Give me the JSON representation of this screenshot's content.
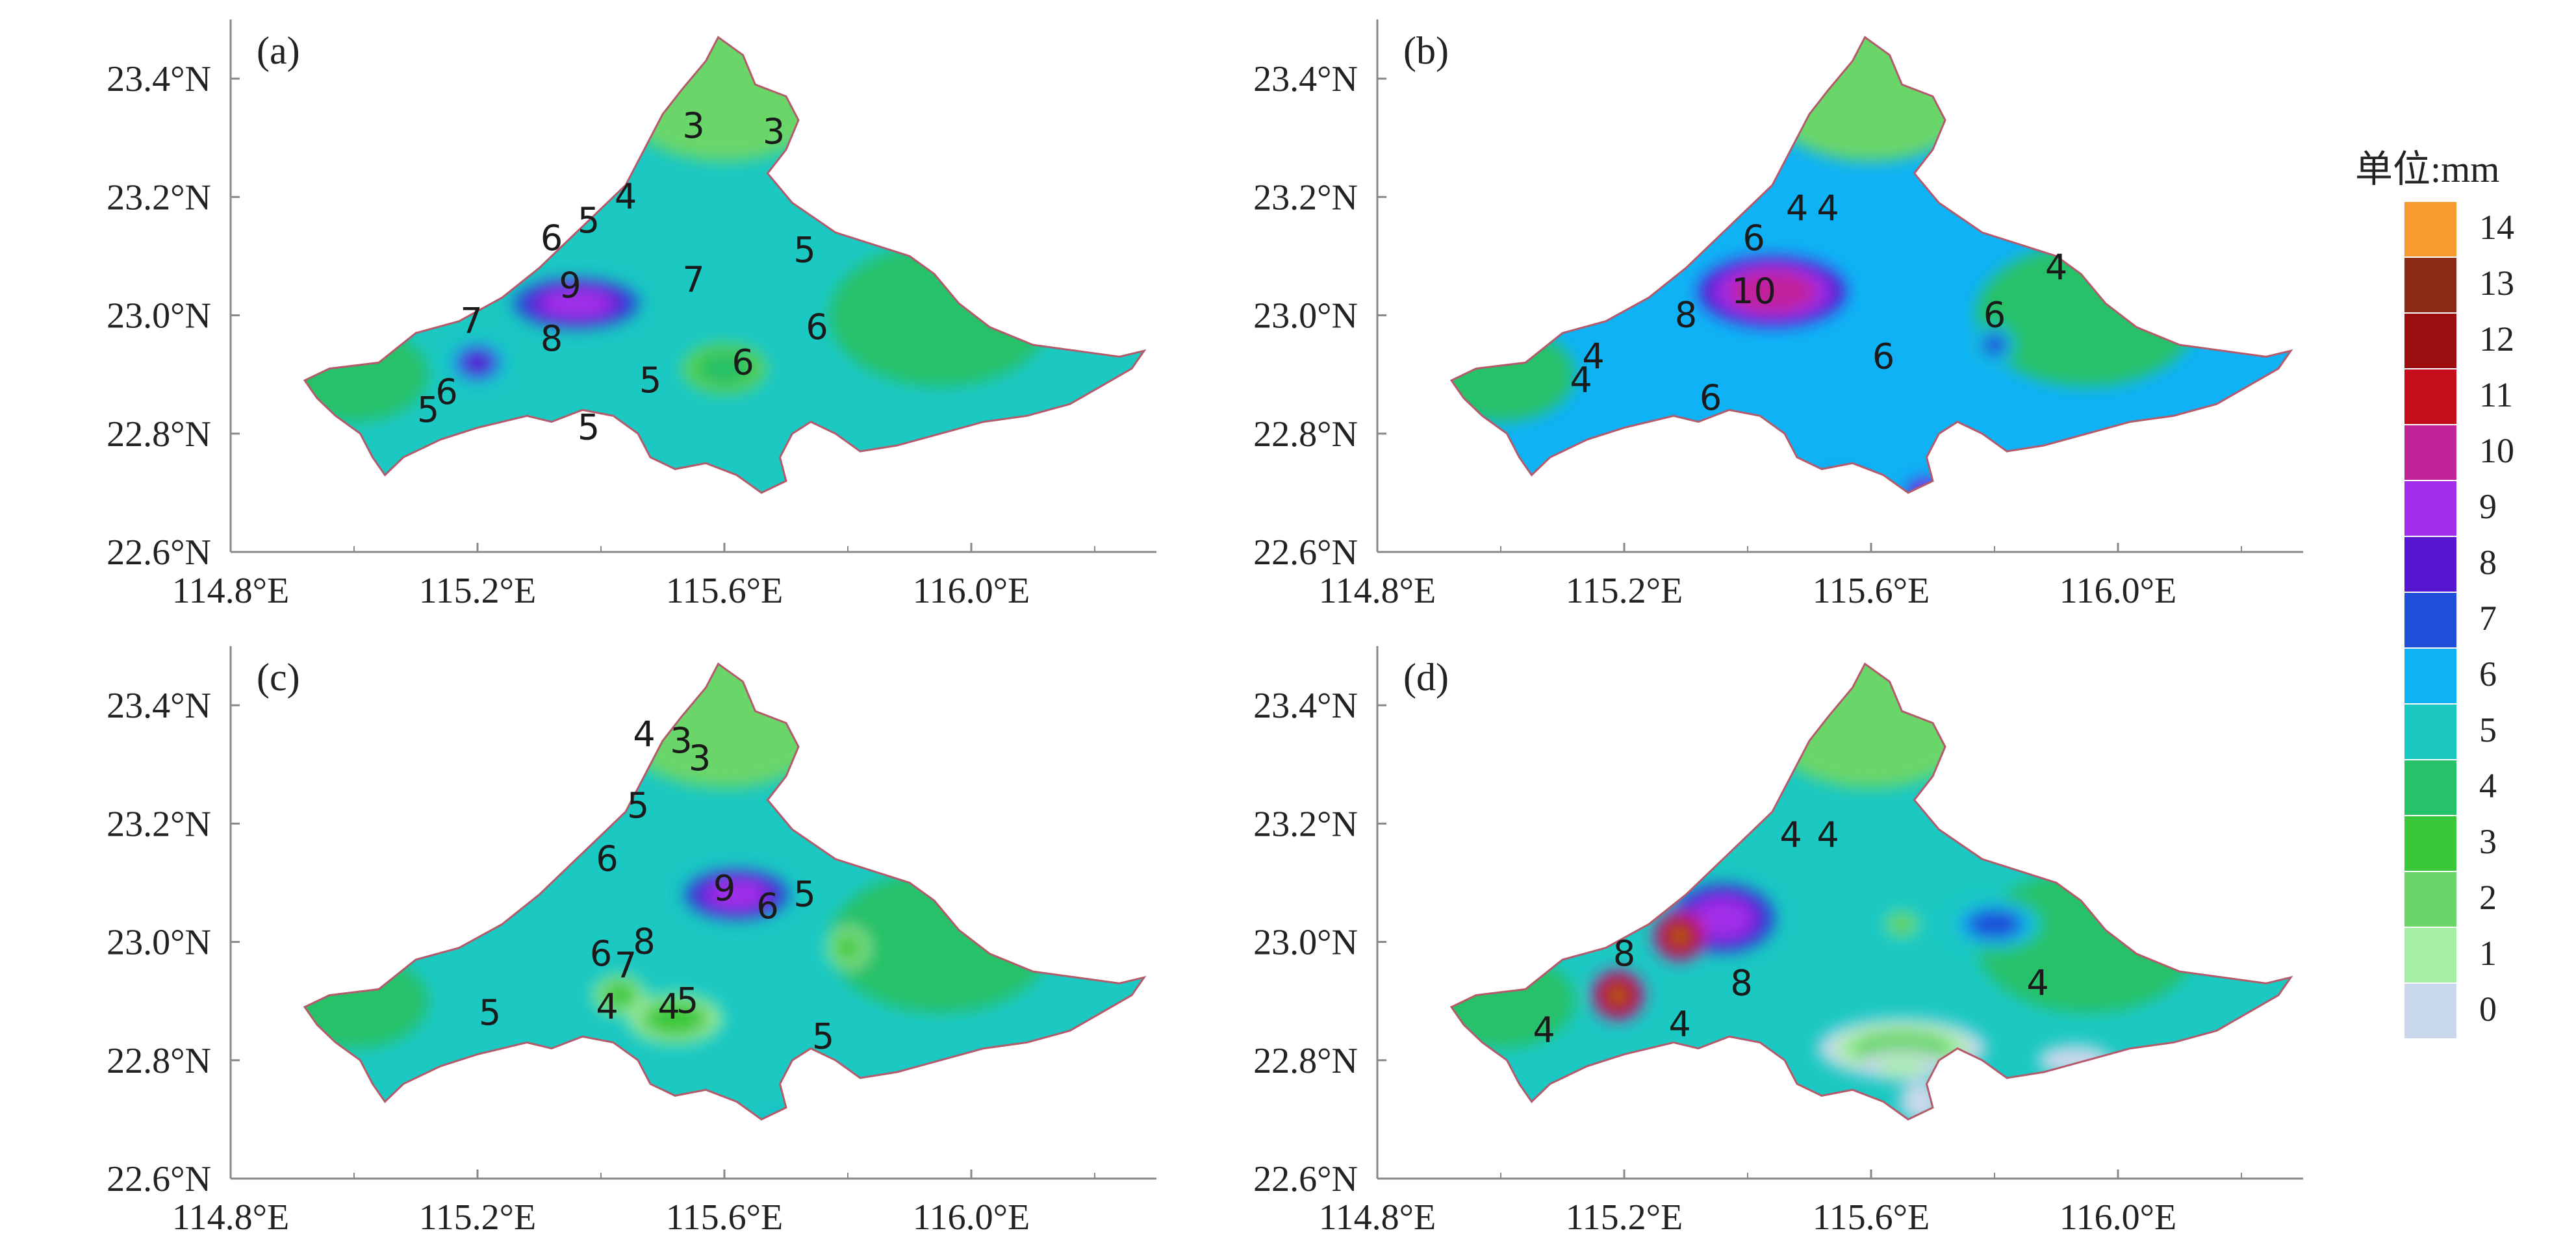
{
  "panels": [
    {
      "label": "(a)",
      "contour_labels": [
        {
          "text": "3",
          "lon": 115.55,
          "lat": 23.32
        },
        {
          "text": "3",
          "lon": 115.68,
          "lat": 23.31
        },
        {
          "text": "4",
          "lon": 115.44,
          "lat": 23.2
        },
        {
          "text": "5",
          "lon": 115.38,
          "lat": 23.16
        },
        {
          "text": "6",
          "lon": 115.32,
          "lat": 23.13
        },
        {
          "text": "5",
          "lon": 115.73,
          "lat": 23.11
        },
        {
          "text": "9",
          "lon": 115.35,
          "lat": 23.05
        },
        {
          "text": "7",
          "lon": 115.55,
          "lat": 23.06
        },
        {
          "text": "7",
          "lon": 115.19,
          "lat": 22.99
        },
        {
          "text": "8",
          "lon": 115.32,
          "lat": 22.96
        },
        {
          "text": "6",
          "lon": 115.75,
          "lat": 22.98
        },
        {
          "text": "6",
          "lon": 115.63,
          "lat": 22.92
        },
        {
          "text": "5",
          "lon": 115.48,
          "lat": 22.89
        },
        {
          "text": "6",
          "lon": 115.15,
          "lat": 22.87
        },
        {
          "text": "5",
          "lon": 115.12,
          "lat": 22.84
        },
        {
          "text": "5",
          "lon": 115.38,
          "lat": 22.81
        }
      ],
      "field_features": [
        {
          "value": 9.5,
          "lon": 115.36,
          "lat": 23.02,
          "rx": 0.06,
          "ry": 0.025
        },
        {
          "value": 8.6,
          "lon": 115.2,
          "lat": 22.92,
          "rx": 0.025,
          "ry": 0.02
        },
        {
          "value": 4.5,
          "lon": 115.6,
          "lat": 22.91,
          "rx": 0.04,
          "ry": 0.025
        }
      ]
    },
    {
      "label": "(b)",
      "contour_labels": [
        {
          "text": "4",
          "lon": 115.48,
          "lat": 23.18
        },
        {
          "text": "4",
          "lon": 115.53,
          "lat": 23.18
        },
        {
          "text": "6",
          "lon": 115.41,
          "lat": 23.13
        },
        {
          "text": "4",
          "lon": 115.9,
          "lat": 23.08
        },
        {
          "text": "10",
          "lon": 115.41,
          "lat": 23.04
        },
        {
          "text": "6",
          "lon": 115.8,
          "lat": 23.0
        },
        {
          "text": "8",
          "lon": 115.3,
          "lat": 23.0
        },
        {
          "text": "4",
          "lon": 115.15,
          "lat": 22.93
        },
        {
          "text": "4",
          "lon": 115.13,
          "lat": 22.89
        },
        {
          "text": "6",
          "lon": 115.62,
          "lat": 22.93
        },
        {
          "text": "6",
          "lon": 115.34,
          "lat": 22.86
        }
      ],
      "field_features": [
        {
          "value": 10.5,
          "lon": 115.44,
          "lat": 23.04,
          "rx": 0.07,
          "ry": 0.035
        },
        {
          "value": 7.5,
          "lon": 115.8,
          "lat": 22.95,
          "rx": 0.02,
          "ry": 0.02
        },
        {
          "value": 8.5,
          "lon": 115.55,
          "lat": 22.71,
          "rx": 0.035,
          "ry": 0.015
        },
        {
          "value": 9.5,
          "lon": 115.69,
          "lat": 22.7,
          "rx": 0.02,
          "ry": 0.015
        }
      ]
    },
    {
      "label": "(c)",
      "contour_labels": [
        {
          "text": "4",
          "lon": 115.47,
          "lat": 23.35
        },
        {
          "text": "3",
          "lon": 115.53,
          "lat": 23.34
        },
        {
          "text": "3",
          "lon": 115.56,
          "lat": 23.31
        },
        {
          "text": "5",
          "lon": 115.46,
          "lat": 23.23
        },
        {
          "text": "6",
          "lon": 115.41,
          "lat": 23.14
        },
        {
          "text": "9",
          "lon": 115.6,
          "lat": 23.09
        },
        {
          "text": "6",
          "lon": 115.67,
          "lat": 23.06
        },
        {
          "text": "5",
          "lon": 115.73,
          "lat": 23.08
        },
        {
          "text": "8",
          "lon": 115.47,
          "lat": 23.0
        },
        {
          "text": "7",
          "lon": 115.44,
          "lat": 22.96
        },
        {
          "text": "6",
          "lon": 115.4,
          "lat": 22.98
        },
        {
          "text": "5",
          "lon": 115.22,
          "lat": 22.88
        },
        {
          "text": "4",
          "lon": 115.41,
          "lat": 22.89
        },
        {
          "text": "4",
          "lon": 115.51,
          "lat": 22.89
        },
        {
          "text": "5",
          "lon": 115.54,
          "lat": 22.9
        },
        {
          "text": "5",
          "lon": 115.76,
          "lat": 22.84
        }
      ],
      "field_features": [
        {
          "value": 9.5,
          "lon": 115.62,
          "lat": 23.08,
          "rx": 0.05,
          "ry": 0.025
        },
        {
          "value": 3.5,
          "lon": 115.43,
          "lat": 22.91,
          "rx": 0.025,
          "ry": 0.02
        },
        {
          "value": 3.5,
          "lon": 115.52,
          "lat": 22.87,
          "rx": 0.045,
          "ry": 0.025
        },
        {
          "value": 3.5,
          "lon": 115.8,
          "lat": 22.99,
          "rx": 0.02,
          "ry": 0.02
        },
        {
          "value": 8.5,
          "lon": 115.69,
          "lat": 22.67,
          "rx": 0.015,
          "ry": 0.02
        }
      ]
    },
    {
      "label": "(d)",
      "contour_labels": [
        {
          "text": "4",
          "lon": 115.47,
          "lat": 23.18
        },
        {
          "text": "4",
          "lon": 115.53,
          "lat": 23.18
        },
        {
          "text": "8",
          "lon": 115.2,
          "lat": 22.98
        },
        {
          "text": "8",
          "lon": 115.39,
          "lat": 22.93
        },
        {
          "text": "4",
          "lon": 115.29,
          "lat": 22.86
        },
        {
          "text": "4",
          "lon": 115.07,
          "lat": 22.85
        },
        {
          "text": "4",
          "lon": 115.87,
          "lat": 22.93
        }
      ],
      "field_features": [
        {
          "value": 9.5,
          "lon": 115.36,
          "lat": 23.04,
          "rx": 0.05,
          "ry": 0.035
        },
        {
          "value": 12.5,
          "lon": 115.29,
          "lat": 23.01,
          "rx": 0.025,
          "ry": 0.025
        },
        {
          "value": 14.5,
          "lon": 115.29,
          "lat": 23.01,
          "rx": 0.008,
          "ry": 0.008
        },
        {
          "value": 12.5,
          "lon": 115.19,
          "lat": 22.91,
          "rx": 0.025,
          "ry": 0.025
        },
        {
          "value": 14.5,
          "lon": 115.19,
          "lat": 22.91,
          "rx": 0.008,
          "ry": 0.008
        },
        {
          "value": 7.5,
          "lon": 115.8,
          "lat": 23.03,
          "rx": 0.045,
          "ry": 0.025
        },
        {
          "value": 2.5,
          "lon": 115.65,
          "lat": 22.82,
          "rx": 0.08,
          "ry": 0.03
        },
        {
          "value": 1.5,
          "lon": 115.65,
          "lat": 22.79,
          "rx": 0.04,
          "ry": 0.015
        },
        {
          "value": 0.5,
          "lon": 115.68,
          "lat": 22.73,
          "rx": 0.02,
          "ry": 0.02
        },
        {
          "value": 0.5,
          "lon": 115.93,
          "lat": 22.8,
          "rx": 0.035,
          "ry": 0.015
        },
        {
          "value": 3.5,
          "lon": 115.65,
          "lat": 23.03,
          "rx": 0.015,
          "ry": 0.012
        }
      ]
    }
  ],
  "lat_ticks": [
    "22.6°N",
    "22.8°N",
    "23.0°N",
    "23.2°N",
    "23.4°N"
  ],
  "lat_values": [
    22.6,
    22.8,
    23.0,
    23.2,
    23.4
  ],
  "lon_ticks": [
    "114.8°E",
    "115.2°E",
    "115.6°E",
    "116.0°E"
  ],
  "lon_values": [
    114.8,
    115.2,
    115.6,
    116.0
  ],
  "extent": {
    "lon_min": 114.8,
    "lon_max": 116.3,
    "lat_min": 22.6,
    "lat_max": 23.5
  },
  "colorbar": {
    "title": "单位:mm",
    "levels": [
      {
        "label": "14",
        "color": "#f79a30"
      },
      {
        "label": "13",
        "color": "#8a2a14"
      },
      {
        "label": "12",
        "color": "#9b0e10"
      },
      {
        "label": "11",
        "color": "#c50e1c"
      },
      {
        "label": "10",
        "color": "#c1239b"
      },
      {
        "label": "9",
        "color": "#a12ee8"
      },
      {
        "label": "8",
        "color": "#5616d0"
      },
      {
        "label": "7",
        "color": "#1f4ed8"
      },
      {
        "label": "6",
        "color": "#0fb2f4"
      },
      {
        "label": "5",
        "color": "#1bc8c2"
      },
      {
        "label": "4",
        "color": "#26c169"
      },
      {
        "label": "3",
        "color": "#3ac83a"
      },
      {
        "label": "2",
        "color": "#6ad66a"
      },
      {
        "label": "1",
        "color": "#a5eea5"
      },
      {
        "label": "0",
        "color": "#c9d8ea"
      }
    ]
  },
  "style": {
    "border_color": "#b45a6b",
    "contour_color": "#5a7a6a",
    "axis_color": "#888888"
  }
}
